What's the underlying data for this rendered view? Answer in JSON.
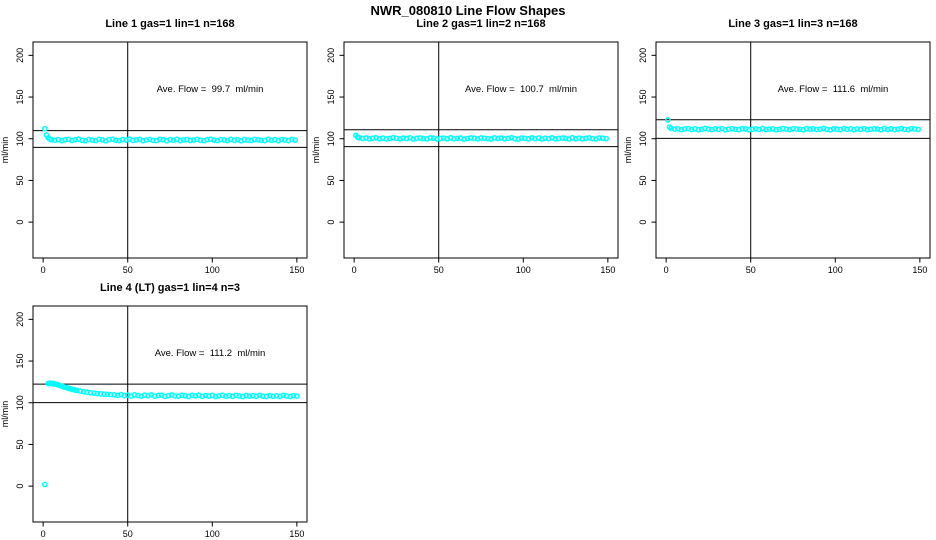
{
  "figure": {
    "title": "NWR_080810  Line Flow Shapes",
    "background": "#ffffff"
  },
  "style": {
    "point_color": "#00ffff",
    "line_color": "#000000",
    "text_color": "#000000",
    "marker": "open-circle"
  },
  "axes": {
    "ylabel": "ml/min",
    "xlabel": "",
    "x_ticks": [
      0,
      50,
      100,
      150
    ],
    "y_ticks": [
      0,
      50,
      100,
      150,
      200
    ],
    "x_usr": [
      -6,
      156
    ],
    "y_usr": [
      -43,
      216
    ],
    "vline_x": 50,
    "grid": false
  },
  "chart_data": [
    {
      "type": "scatter",
      "title": "Line 1 gas=1 lin=1 n=168",
      "annotation": "Ave. Flow =  99.7  ml/min",
      "avg_flow_ml_min": 99.7,
      "hlines": [
        109.7,
        89.7
      ],
      "points_transient": [
        [
          1,
          112.0
        ],
        [
          2,
          104.5
        ],
        [
          3,
          101.0
        ],
        [
          4,
          99.5
        ],
        [
          5,
          98.6
        ]
      ],
      "points_steady": {
        "x_from": 7,
        "x_step": 2,
        "y": [
          98.2,
          99.0,
          97.7,
          98.6,
          99.3,
          97.9,
          98.8,
          99.5,
          98.0,
          97.6,
          99.1,
          98.4,
          97.8,
          99.2,
          98.6,
          97.5,
          98.9,
          99.4,
          98.1,
          97.7,
          99.0,
          98.3,
          99.5,
          97.9,
          98.7,
          99.2,
          97.6,
          98.5,
          99.1,
          98.0,
          97.8,
          99.3,
          98.8,
          97.5,
          99.0,
          98.2,
          99.4,
          97.7,
          98.6,
          99.1,
          97.9,
          98.4,
          99.2,
          98.0,
          97.6,
          98.9,
          99.5,
          98.3,
          97.8,
          99.0,
          98.5,
          97.7,
          99.3,
          98.1,
          98.8,
          97.5,
          99.1,
          98.4,
          97.9,
          99.2,
          98.6,
          98.0,
          97.7,
          99.4,
          98.2,
          98.9,
          97.6,
          99.0,
          98.5,
          97.8,
          99.2,
          98.3
        ]
      }
    },
    {
      "type": "scatter",
      "title": "Line 2 gas=1 lin=2 n=168",
      "annotation": "Ave. Flow =  100.7  ml/min",
      "avg_flow_ml_min": 100.7,
      "hlines": [
        110.8,
        90.6
      ],
      "points_transient": [
        [
          1,
          104.0
        ],
        [
          2,
          102.0
        ],
        [
          3,
          101.2
        ]
      ],
      "points_steady": {
        "x_from": 5,
        "x_step": 2,
        "y": [
          100.4,
          100.9,
          99.8,
          100.6,
          101.1,
          100.0,
          100.7,
          99.7,
          100.3,
          101.2,
          100.5,
          99.9,
          100.8,
          100.2,
          101.0,
          99.6,
          100.4,
          100.9,
          100.1,
          99.8,
          101.1,
          100.6,
          99.7,
          100.3,
          100.8,
          100.0,
          101.2,
          99.9,
          100.5,
          100.7,
          99.6,
          100.2,
          101.0,
          100.4,
          99.8,
          100.9,
          100.6,
          100.1,
          99.7,
          101.1,
          100.3,
          100.8,
          99.9,
          100.5,
          101.2,
          100.0,
          99.6,
          100.7,
          100.4,
          99.8,
          101.0,
          100.2,
          100.9,
          99.7,
          100.6,
          100.1,
          101.1,
          99.9,
          100.3,
          100.8,
          100.5,
          99.6,
          101.2,
          100.0,
          100.7,
          99.8,
          100.4,
          101.0,
          100.2,
          99.7,
          100.9,
          100.6,
          100.1
        ]
      }
    },
    {
      "type": "scatter",
      "title": "Line 3 gas=1 lin=3 n=168",
      "annotation": "Ave. Flow =  111.6  ml/min",
      "avg_flow_ml_min": 111.6,
      "hlines": [
        122.8,
        100.4
      ],
      "points_transient": [
        [
          1,
          122.5
        ],
        [
          2,
          114.0
        ],
        [
          3,
          112.5
        ]
      ],
      "points_steady": {
        "x_from": 5,
        "x_step": 2,
        "y": [
          111.5,
          112.0,
          110.9,
          111.7,
          112.2,
          111.1,
          111.8,
          110.8,
          111.4,
          112.3,
          111.6,
          111.0,
          111.9,
          111.3,
          112.1,
          110.7,
          111.5,
          112.0,
          111.2,
          110.9,
          112.2,
          111.7,
          110.8,
          111.4,
          111.9,
          111.1,
          112.3,
          111.0,
          111.6,
          111.8,
          110.7,
          111.3,
          112.1,
          111.5,
          110.9,
          112.0,
          111.7,
          111.2,
          110.8,
          112.2,
          111.4,
          111.9,
          111.0,
          111.6,
          112.3,
          111.1,
          110.7,
          111.8,
          111.5,
          110.9,
          112.1,
          111.3,
          112.0,
          110.8,
          111.7,
          111.2,
          112.2,
          111.0,
          111.4,
          111.9,
          111.6,
          110.7,
          112.3,
          111.1,
          111.8,
          110.9,
          111.5,
          112.1,
          111.3,
          110.8,
          112.0,
          111.7,
          111.2
        ]
      }
    },
    {
      "type": "scatter",
      "title": "Line 4 (LT) gas=1 lin=4 n=3",
      "annotation": "Ave. Flow =  111.2  ml/min",
      "avg_flow_ml_min": 111.2,
      "hlines": [
        122.3,
        100.1
      ],
      "points_transient": [
        [
          1,
          2.0
        ],
        [
          3,
          123.0
        ],
        [
          4,
          123.6
        ],
        [
          5,
          122.8
        ],
        [
          6,
          123.2
        ],
        [
          7,
          122.4
        ],
        [
          8,
          122.0
        ],
        [
          9,
          121.4
        ],
        [
          10,
          120.6
        ],
        [
          11,
          119.9
        ],
        [
          12,
          119.2
        ],
        [
          13,
          118.6
        ],
        [
          14,
          118.0
        ],
        [
          15,
          117.4
        ],
        [
          16,
          116.8
        ],
        [
          17,
          116.2
        ],
        [
          18,
          115.7
        ],
        [
          19,
          115.2
        ],
        [
          20,
          114.7
        ],
        [
          22,
          113.9
        ],
        [
          24,
          113.2
        ],
        [
          26,
          112.6
        ],
        [
          28,
          112.0
        ],
        [
          30,
          111.5
        ],
        [
          32,
          111.0
        ],
        [
          34,
          110.6
        ],
        [
          36,
          110.3
        ],
        [
          38,
          110.0
        ],
        [
          40,
          109.7
        ]
      ],
      "points_steady": {
        "x_from": 42,
        "x_step": 2,
        "y": [
          109.5,
          108.9,
          109.8,
          108.5,
          109.2,
          108.0,
          109.6,
          108.7,
          107.9,
          109.1,
          108.3,
          109.4,
          107.8,
          108.8,
          109.0,
          107.6,
          108.5,
          109.3,
          108.1,
          107.9,
          109.0,
          108.4,
          107.5,
          108.9,
          108.2,
          109.1,
          107.7,
          108.6,
          107.9,
          108.8,
          107.5,
          108.3,
          109.0,
          107.8,
          108.5,
          107.6,
          108.9,
          108.1,
          107.4,
          108.7,
          107.9,
          108.4,
          107.6,
          108.8,
          108.0,
          107.5,
          108.6,
          107.8,
          108.3,
          107.6,
          108.9,
          108.1,
          107.5,
          108.4,
          107.9
        ]
      }
    }
  ]
}
